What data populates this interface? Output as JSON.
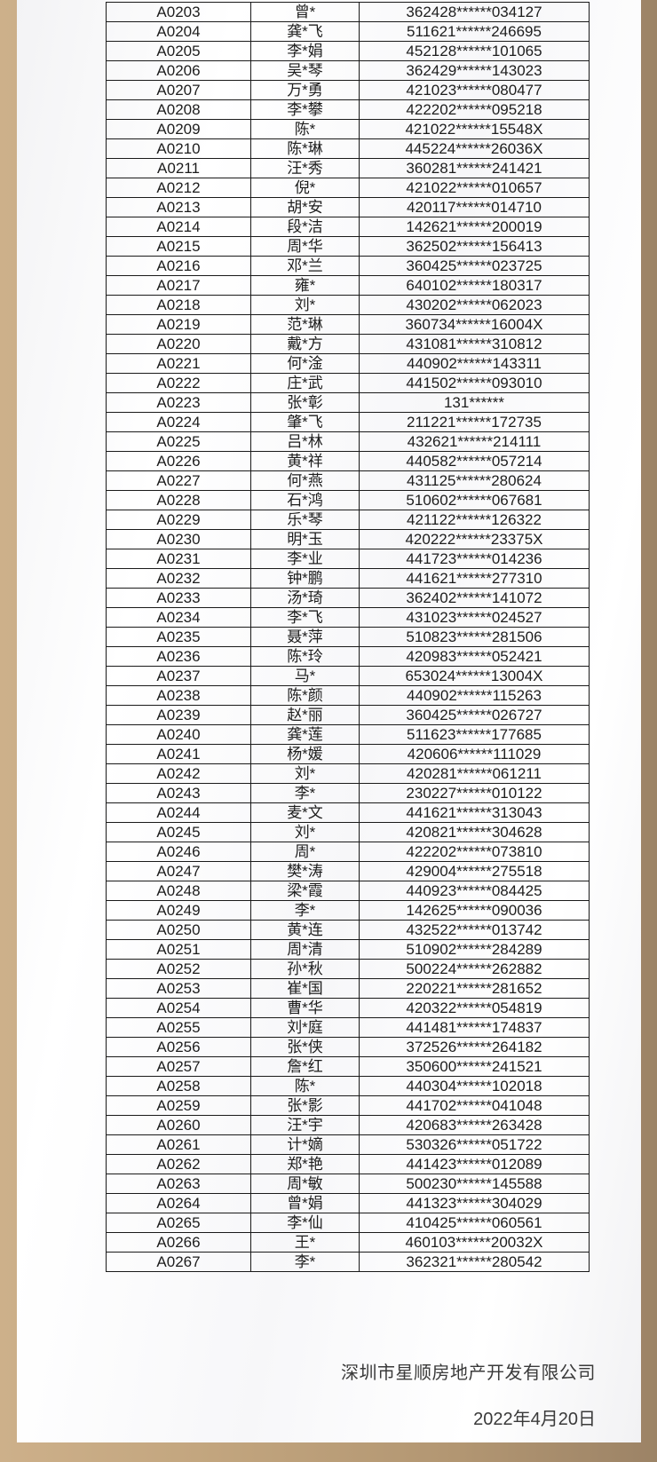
{
  "table": {
    "rows": [
      [
        "A0203",
        "曾*",
        "362428******034127"
      ],
      [
        "A0204",
        "龚*飞",
        "511621******246695"
      ],
      [
        "A0205",
        "李*娟",
        "452128******101065"
      ],
      [
        "A0206",
        "吴*琴",
        "362429******143023"
      ],
      [
        "A0207",
        "万*勇",
        "421023******080477"
      ],
      [
        "A0208",
        "李*攀",
        "422202******095218"
      ],
      [
        "A0209",
        "陈*",
        "421022******15548X"
      ],
      [
        "A0210",
        "陈*琳",
        "445224******26036X"
      ],
      [
        "A0211",
        "汪*秀",
        "360281******241421"
      ],
      [
        "A0212",
        "倪*",
        "421022******010657"
      ],
      [
        "A0213",
        "胡*安",
        "420117******014710"
      ],
      [
        "A0214",
        "段*洁",
        "142621******200019"
      ],
      [
        "A0215",
        "周*华",
        "362502******156413"
      ],
      [
        "A0216",
        "邓*兰",
        "360425******023725"
      ],
      [
        "A0217",
        "雍*",
        "640102******180317"
      ],
      [
        "A0218",
        "刘*",
        "430202******062023"
      ],
      [
        "A0219",
        "范*琳",
        "360734******16004X"
      ],
      [
        "A0220",
        "戴*方",
        "431081******310812"
      ],
      [
        "A0221",
        "何*淦",
        "440902******143311"
      ],
      [
        "A0222",
        "庄*武",
        "441502******093010"
      ],
      [
        "A0223",
        "张*彰",
        "131******"
      ],
      [
        "A0224",
        "肇*飞",
        "211221******172735"
      ],
      [
        "A0225",
        "吕*林",
        "432621******214111"
      ],
      [
        "A0226",
        "黄*祥",
        "440582******057214"
      ],
      [
        "A0227",
        "何*燕",
        "431125******280624"
      ],
      [
        "A0228",
        "石*鸿",
        "510602******067681"
      ],
      [
        "A0229",
        "乐*琴",
        "421122******126322"
      ],
      [
        "A0230",
        "明*玉",
        "420222******23375X"
      ],
      [
        "A0231",
        "李*业",
        "441723******014236"
      ],
      [
        "A0232",
        "钟*鹏",
        "441621******277310"
      ],
      [
        "A0233",
        "汤*琦",
        "362402******141072"
      ],
      [
        "A0234",
        "李*飞",
        "431023******024527"
      ],
      [
        "A0235",
        "聂*萍",
        "510823******281506"
      ],
      [
        "A0236",
        "陈*玲",
        "420983******052421"
      ],
      [
        "A0237",
        "马*",
        "653024******13004X"
      ],
      [
        "A0238",
        "陈*颜",
        "440902******115263"
      ],
      [
        "A0239",
        "赵*丽",
        "360425******026727"
      ],
      [
        "A0240",
        "龚*莲",
        "511623******177685"
      ],
      [
        "A0241",
        "杨*媛",
        "420606******111029"
      ],
      [
        "A0242",
        "刘*",
        "420281******061211"
      ],
      [
        "A0243",
        "李*",
        "230227******010122"
      ],
      [
        "A0244",
        "麦*文",
        "441621******313043"
      ],
      [
        "A0245",
        "刘*",
        "420821******304628"
      ],
      [
        "A0246",
        "周*",
        "422202******073810"
      ],
      [
        "A0247",
        "樊*涛",
        "429004******275518"
      ],
      [
        "A0248",
        "梁*霞",
        "440923******084425"
      ],
      [
        "A0249",
        "李*",
        "142625******090036"
      ],
      [
        "A0250",
        "黄*连",
        "432522******013742"
      ],
      [
        "A0251",
        "周*清",
        "510902******284289"
      ],
      [
        "A0252",
        "孙*秋",
        "500224******262882"
      ],
      [
        "A0253",
        "崔*国",
        "220221******281652"
      ],
      [
        "A0254",
        "曹*华",
        "420322******054819"
      ],
      [
        "A0255",
        "刘*庭",
        "441481******174837"
      ],
      [
        "A0256",
        "张*侠",
        "372526******264182"
      ],
      [
        "A0257",
        "詹*红",
        "350600******241521"
      ],
      [
        "A0258",
        "陈*",
        "440304******102018"
      ],
      [
        "A0259",
        "张*影",
        "441702******041048"
      ],
      [
        "A0260",
        "汪*宇",
        "420683******263428"
      ],
      [
        "A0261",
        "计*嫡",
        "530326******051722"
      ],
      [
        "A0262",
        "郑*艳",
        "441423******012089"
      ],
      [
        "A0263",
        "周*敏",
        "500230******145588"
      ],
      [
        "A0264",
        "曾*娟",
        "441323******304029"
      ],
      [
        "A0265",
        "李*仙",
        "410425******060561"
      ],
      [
        "A0266",
        "王*",
        "460103******20032X"
      ],
      [
        "A0267",
        "李*",
        "362321******280542"
      ]
    ]
  },
  "footer": {
    "company": "深圳市星顺房地产开发有限公司",
    "date": "2022年4月20日"
  },
  "colors": {
    "frame": "#c3a67f",
    "panel": "#ffffff",
    "grid": "#1a1a1a"
  }
}
